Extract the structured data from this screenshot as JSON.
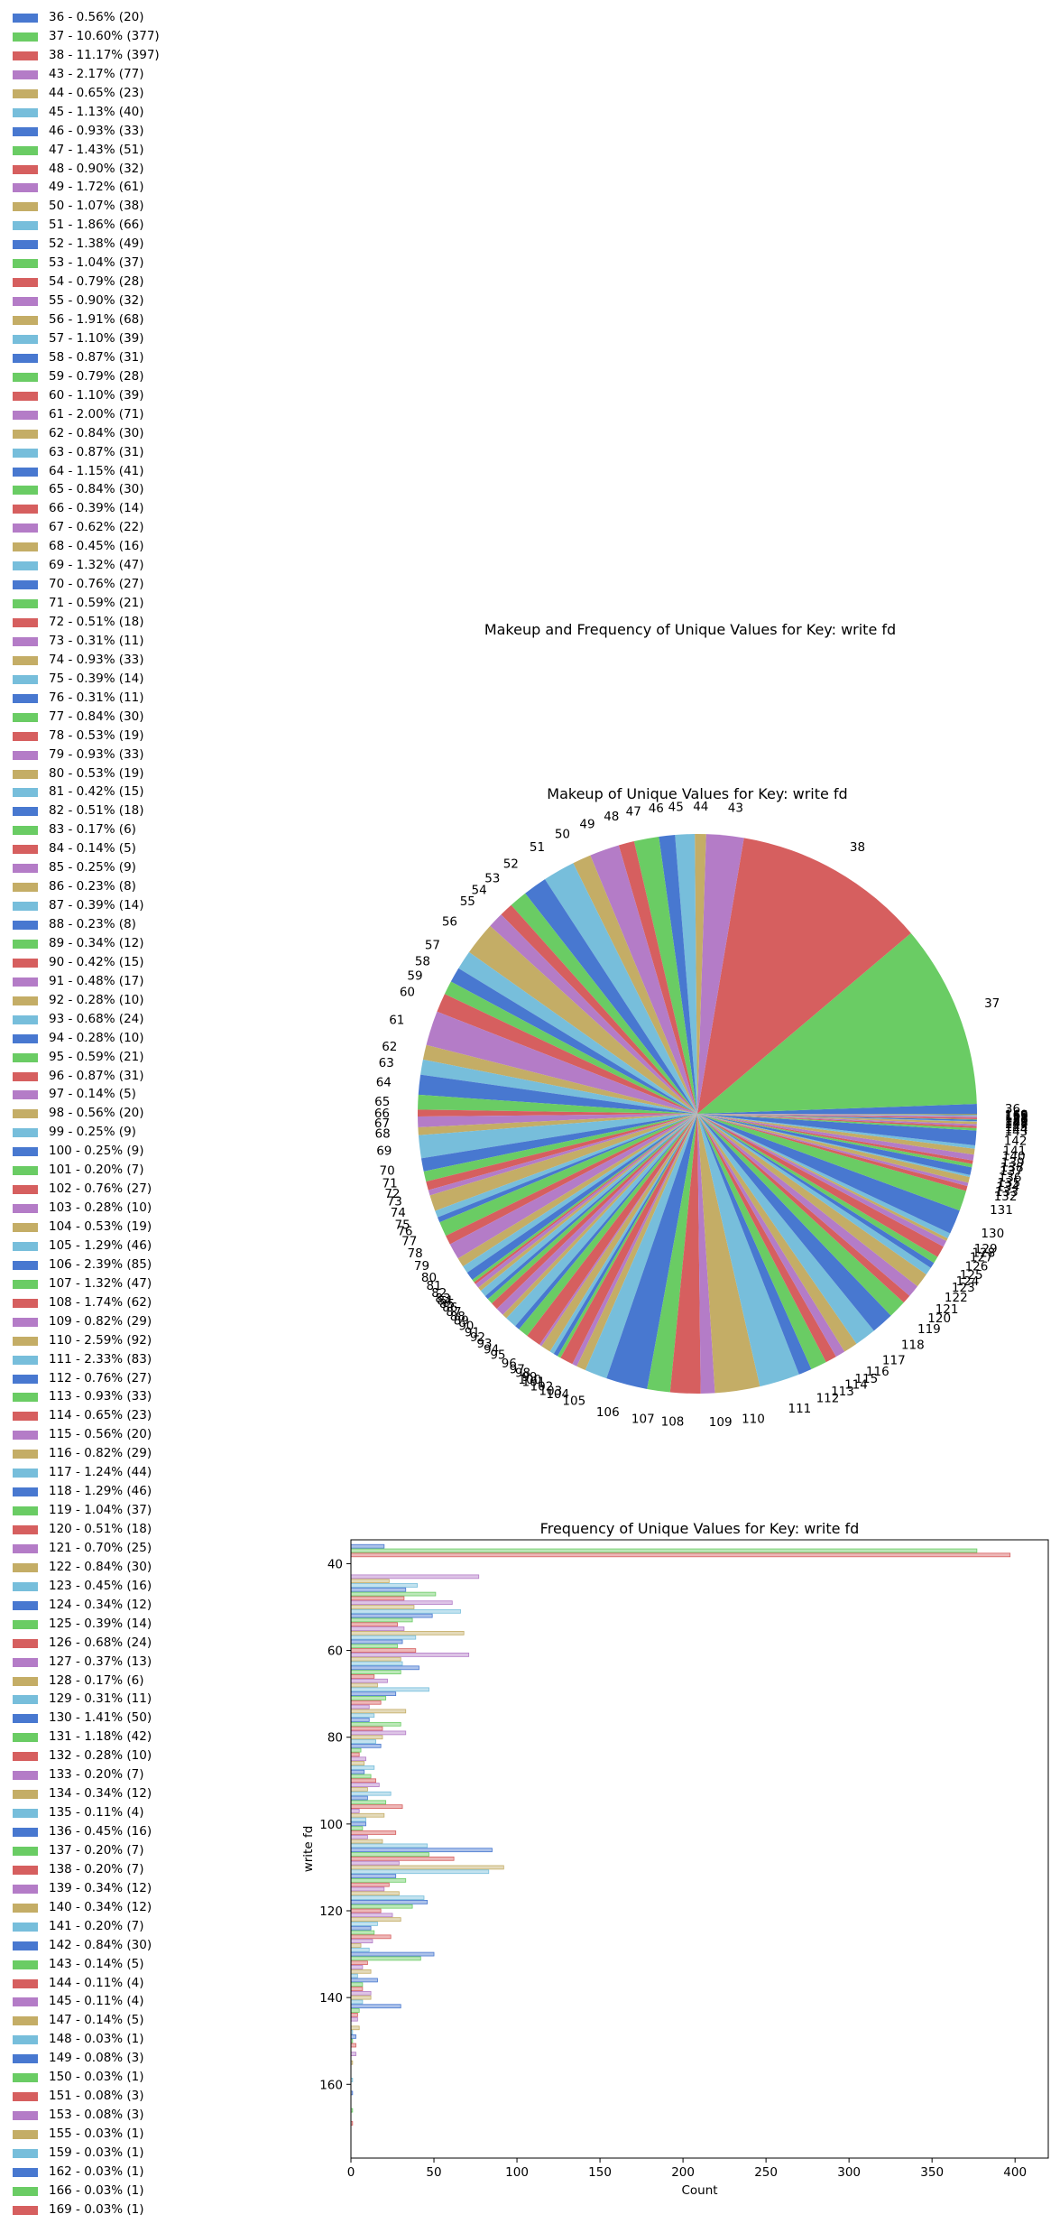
{
  "suptitle": "Makeup and Frequency of Unique Values for Key: write fd",
  "colors": [
    "#4878d0",
    "#6acc64",
    "#d65f5f",
    "#b47cc7",
    "#c4ad66",
    "#77bedb"
  ],
  "chart_data": [
    {
      "type": "pie",
      "title": "Makeup of Unique Values for Key: write fd",
      "slices": [
        {
          "label": "36",
          "pct": "0.56%",
          "count": 20
        },
        {
          "label": "37",
          "pct": "10.60%",
          "count": 377
        },
        {
          "label": "38",
          "pct": "11.17%",
          "count": 397
        },
        {
          "label": "43",
          "pct": "2.17%",
          "count": 77
        },
        {
          "label": "44",
          "pct": "0.65%",
          "count": 23
        },
        {
          "label": "45",
          "pct": "1.13%",
          "count": 40
        },
        {
          "label": "46",
          "pct": "0.93%",
          "count": 33
        },
        {
          "label": "47",
          "pct": "1.43%",
          "count": 51
        },
        {
          "label": "48",
          "pct": "0.90%",
          "count": 32
        },
        {
          "label": "49",
          "pct": "1.72%",
          "count": 61
        },
        {
          "label": "50",
          "pct": "1.07%",
          "count": 38
        },
        {
          "label": "51",
          "pct": "1.86%",
          "count": 66
        },
        {
          "label": "52",
          "pct": "1.38%",
          "count": 49
        },
        {
          "label": "53",
          "pct": "1.04%",
          "count": 37
        },
        {
          "label": "54",
          "pct": "0.79%",
          "count": 28
        },
        {
          "label": "55",
          "pct": "0.90%",
          "count": 32
        },
        {
          "label": "56",
          "pct": "1.91%",
          "count": 68
        },
        {
          "label": "57",
          "pct": "1.10%",
          "count": 39
        },
        {
          "label": "58",
          "pct": "0.87%",
          "count": 31
        },
        {
          "label": "59",
          "pct": "0.79%",
          "count": 28
        },
        {
          "label": "60",
          "pct": "1.10%",
          "count": 39
        },
        {
          "label": "61",
          "pct": "2.00%",
          "count": 71
        },
        {
          "label": "62",
          "pct": "0.84%",
          "count": 30
        },
        {
          "label": "63",
          "pct": "0.87%",
          "count": 31
        },
        {
          "label": "64",
          "pct": "1.15%",
          "count": 41
        },
        {
          "label": "65",
          "pct": "0.84%",
          "count": 30
        },
        {
          "label": "66",
          "pct": "0.39%",
          "count": 14
        },
        {
          "label": "67",
          "pct": "0.62%",
          "count": 22
        },
        {
          "label": "68",
          "pct": "0.45%",
          "count": 16
        },
        {
          "label": "69",
          "pct": "1.32%",
          "count": 47
        },
        {
          "label": "70",
          "pct": "0.76%",
          "count": 27
        },
        {
          "label": "71",
          "pct": "0.59%",
          "count": 21
        },
        {
          "label": "72",
          "pct": "0.51%",
          "count": 18
        },
        {
          "label": "73",
          "pct": "0.31%",
          "count": 11
        },
        {
          "label": "74",
          "pct": "0.93%",
          "count": 33
        },
        {
          "label": "75",
          "pct": "0.39%",
          "count": 14
        },
        {
          "label": "76",
          "pct": "0.31%",
          "count": 11
        },
        {
          "label": "77",
          "pct": "0.84%",
          "count": 30
        },
        {
          "label": "78",
          "pct": "0.53%",
          "count": 19
        },
        {
          "label": "79",
          "pct": "0.93%",
          "count": 33
        },
        {
          "label": "80",
          "pct": "0.53%",
          "count": 19
        },
        {
          "label": "81",
          "pct": "0.42%",
          "count": 15
        },
        {
          "label": "82",
          "pct": "0.51%",
          "count": 18
        },
        {
          "label": "83",
          "pct": "0.17%",
          "count": 6
        },
        {
          "label": "84",
          "pct": "0.14%",
          "count": 5
        },
        {
          "label": "85",
          "pct": "0.25%",
          "count": 9
        },
        {
          "label": "86",
          "pct": "0.23%",
          "count": 8
        },
        {
          "label": "87",
          "pct": "0.39%",
          "count": 14
        },
        {
          "label": "88",
          "pct": "0.23%",
          "count": 8
        },
        {
          "label": "89",
          "pct": "0.34%",
          "count": 12
        },
        {
          "label": "90",
          "pct": "0.42%",
          "count": 15
        },
        {
          "label": "91",
          "pct": "0.48%",
          "count": 17
        },
        {
          "label": "92",
          "pct": "0.28%",
          "count": 10
        },
        {
          "label": "93",
          "pct": "0.68%",
          "count": 24
        },
        {
          "label": "94",
          "pct": "0.28%",
          "count": 10
        },
        {
          "label": "95",
          "pct": "0.59%",
          "count": 21
        },
        {
          "label": "96",
          "pct": "0.87%",
          "count": 31
        },
        {
          "label": "97",
          "pct": "0.14%",
          "count": 5
        },
        {
          "label": "98",
          "pct": "0.56%",
          "count": 20
        },
        {
          "label": "99",
          "pct": "0.25%",
          "count": 9
        },
        {
          "label": "100",
          "pct": "0.25%",
          "count": 9
        },
        {
          "label": "101",
          "pct": "0.20%",
          "count": 7
        },
        {
          "label": "102",
          "pct": "0.76%",
          "count": 27
        },
        {
          "label": "103",
          "pct": "0.28%",
          "count": 10
        },
        {
          "label": "104",
          "pct": "0.53%",
          "count": 19
        },
        {
          "label": "105",
          "pct": "1.29%",
          "count": 46
        },
        {
          "label": "106",
          "pct": "2.39%",
          "count": 85
        },
        {
          "label": "107",
          "pct": "1.32%",
          "count": 47
        },
        {
          "label": "108",
          "pct": "1.74%",
          "count": 62
        },
        {
          "label": "109",
          "pct": "0.82%",
          "count": 29
        },
        {
          "label": "110",
          "pct": "2.59%",
          "count": 92
        },
        {
          "label": "111",
          "pct": "2.33%",
          "count": 83
        },
        {
          "label": "112",
          "pct": "0.76%",
          "count": 27
        },
        {
          "label": "113",
          "pct": "0.93%",
          "count": 33
        },
        {
          "label": "114",
          "pct": "0.65%",
          "count": 23
        },
        {
          "label": "115",
          "pct": "0.56%",
          "count": 20
        },
        {
          "label": "116",
          "pct": "0.82%",
          "count": 29
        },
        {
          "label": "117",
          "pct": "1.24%",
          "count": 44
        },
        {
          "label": "118",
          "pct": "1.29%",
          "count": 46
        },
        {
          "label": "119",
          "pct": "1.04%",
          "count": 37
        },
        {
          "label": "120",
          "pct": "0.51%",
          "count": 18
        },
        {
          "label": "121",
          "pct": "0.70%",
          "count": 25
        },
        {
          "label": "122",
          "pct": "0.84%",
          "count": 30
        },
        {
          "label": "123",
          "pct": "0.45%",
          "count": 16
        },
        {
          "label": "124",
          "pct": "0.34%",
          "count": 12
        },
        {
          "label": "125",
          "pct": "0.39%",
          "count": 14
        },
        {
          "label": "126",
          "pct": "0.68%",
          "count": 24
        },
        {
          "label": "127",
          "pct": "0.37%",
          "count": 13
        },
        {
          "label": "128",
          "pct": "0.17%",
          "count": 6
        },
        {
          "label": "129",
          "pct": "0.31%",
          "count": 11
        },
        {
          "label": "130",
          "pct": "1.41%",
          "count": 50
        },
        {
          "label": "131",
          "pct": "1.18%",
          "count": 42
        },
        {
          "label": "132",
          "pct": "0.28%",
          "count": 10
        },
        {
          "label": "133",
          "pct": "0.20%",
          "count": 7
        },
        {
          "label": "134",
          "pct": "0.34%",
          "count": 12
        },
        {
          "label": "135",
          "pct": "0.11%",
          "count": 4
        },
        {
          "label": "136",
          "pct": "0.45%",
          "count": 16
        },
        {
          "label": "137",
          "pct": "0.20%",
          "count": 7
        },
        {
          "label": "138",
          "pct": "0.20%",
          "count": 7
        },
        {
          "label": "139",
          "pct": "0.34%",
          "count": 12
        },
        {
          "label": "140",
          "pct": "0.34%",
          "count": 12
        },
        {
          "label": "141",
          "pct": "0.20%",
          "count": 7
        },
        {
          "label": "142",
          "pct": "0.84%",
          "count": 30
        },
        {
          "label": "143",
          "pct": "0.14%",
          "count": 5
        },
        {
          "label": "144",
          "pct": "0.11%",
          "count": 4
        },
        {
          "label": "145",
          "pct": "0.11%",
          "count": 4
        },
        {
          "label": "147",
          "pct": "0.14%",
          "count": 5
        },
        {
          "label": "148",
          "pct": "0.03%",
          "count": 1
        },
        {
          "label": "149",
          "pct": "0.08%",
          "count": 3
        },
        {
          "label": "150",
          "pct": "0.03%",
          "count": 1
        },
        {
          "label": "151",
          "pct": "0.08%",
          "count": 3
        },
        {
          "label": "153",
          "pct": "0.08%",
          "count": 3
        },
        {
          "label": "155",
          "pct": "0.03%",
          "count": 1
        },
        {
          "label": "159",
          "pct": "0.03%",
          "count": 1
        },
        {
          "label": "162",
          "pct": "0.03%",
          "count": 1
        },
        {
          "label": "166",
          "pct": "0.03%",
          "count": 1
        },
        {
          "label": "169",
          "pct": "0.03%",
          "count": 1
        }
      ],
      "legend_position": "left"
    },
    {
      "type": "bar",
      "orientation": "horizontal",
      "title": "Frequency of Unique Values for Key: write fd",
      "xlabel": "Count",
      "ylabel": "write fd",
      "xlim": [
        0,
        420
      ],
      "ylim": [
        34.5,
        177
      ],
      "xticks": [
        0,
        50,
        100,
        150,
        200,
        250,
        300,
        350,
        400
      ],
      "yticks": [
        40,
        60,
        80,
        100,
        120,
        140,
        160
      ],
      "grid": false
    }
  ]
}
